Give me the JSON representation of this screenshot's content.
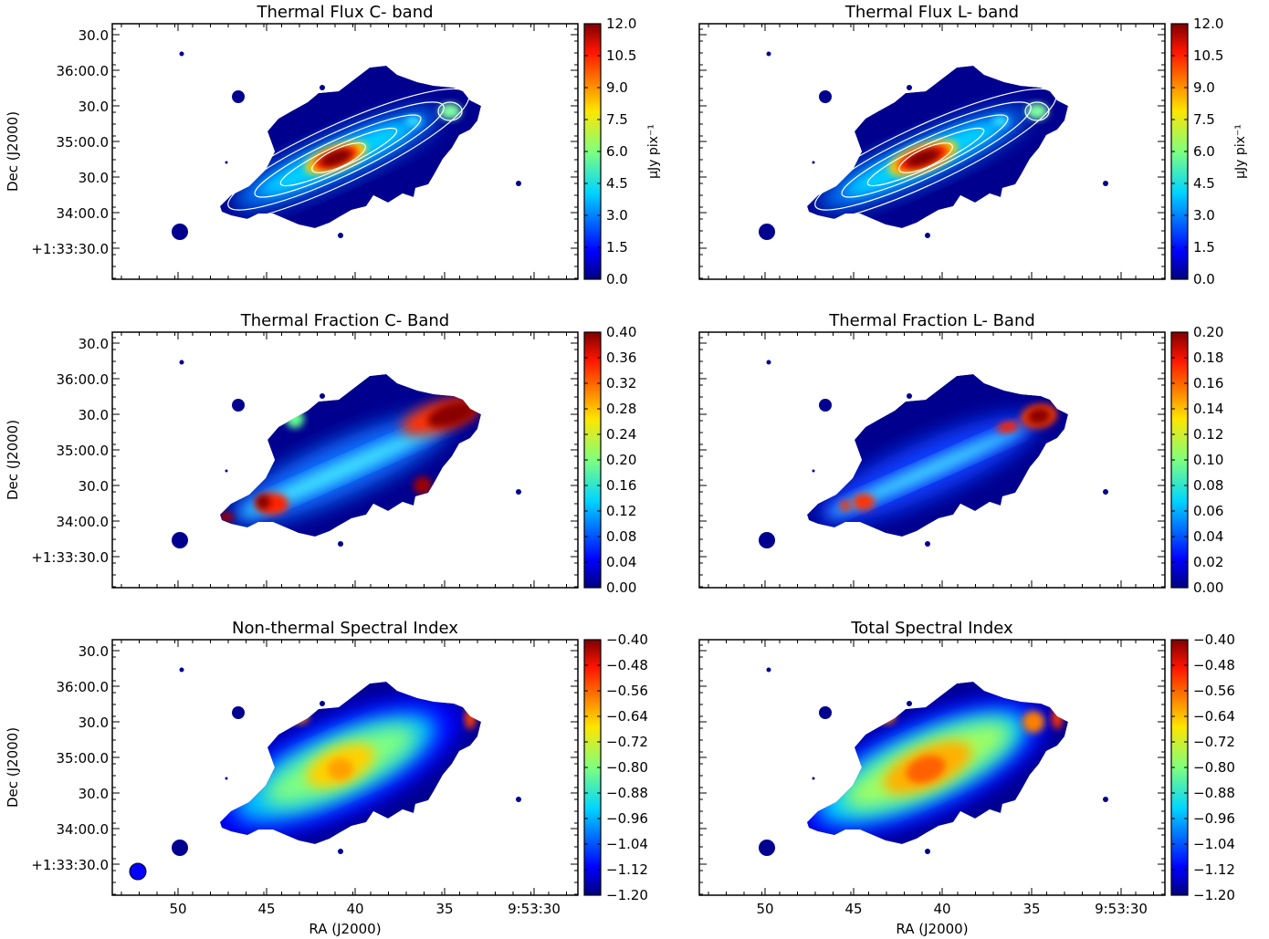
{
  "figure": {
    "colorbar_label_flux": "μJy pix⁻¹"
  },
  "chart_data": [
    {
      "type": "heatmap",
      "title": "Thermal Flux C- band",
      "xlabel": "",
      "ylabel": "Dec (J2000)",
      "x_ticklabels": [],
      "y_ticklabels": [
        "30.0",
        "36:00.0",
        "30.0",
        "35:00.0",
        "30.0",
        "34:00.0",
        "+1:33:30.0"
      ],
      "colorbar": {
        "ticks": [
          "0.0",
          "1.5",
          "3.0",
          "4.5",
          "6.0",
          "7.5",
          "9.0",
          "10.5",
          "12.0"
        ],
        "range": [
          0.0,
          12.0
        ],
        "label": "μJy pix⁻¹",
        "colormap": "jet"
      },
      "contours": true,
      "map_style": "flux-c"
    },
    {
      "type": "heatmap",
      "title": "Thermal Flux L- band",
      "xlabel": "",
      "ylabel": "",
      "x_ticklabels": [],
      "y_ticklabels": [],
      "colorbar": {
        "ticks": [
          "0.0",
          "1.5",
          "3.0",
          "4.5",
          "6.0",
          "7.5",
          "9.0",
          "10.5",
          "12.0"
        ],
        "range": [
          0.0,
          12.0
        ],
        "label": "μJy pix⁻¹",
        "colormap": "jet"
      },
      "contours": true,
      "map_style": "flux-l"
    },
    {
      "type": "heatmap",
      "title": "Thermal Fraction C- Band",
      "xlabel": "",
      "ylabel": "Dec (J2000)",
      "x_ticklabels": [],
      "y_ticklabels": [
        "30.0",
        "36:00.0",
        "30.0",
        "35:00.0",
        "30.0",
        "34:00.0",
        "+1:33:30.0"
      ],
      "colorbar": {
        "ticks": [
          "0.00",
          "0.04",
          "0.08",
          "0.12",
          "0.16",
          "0.20",
          "0.24",
          "0.28",
          "0.32",
          "0.36",
          "0.40"
        ],
        "range": [
          0.0,
          0.4
        ],
        "label": "",
        "colormap": "jet"
      },
      "contours": false,
      "map_style": "frac-c"
    },
    {
      "type": "heatmap",
      "title": "Thermal Fraction L- Band",
      "xlabel": "",
      "ylabel": "",
      "x_ticklabels": [],
      "y_ticklabels": [],
      "colorbar": {
        "ticks": [
          "0.00",
          "0.02",
          "0.04",
          "0.06",
          "0.08",
          "0.10",
          "0.12",
          "0.14",
          "0.16",
          "0.18",
          "0.20"
        ],
        "range": [
          0.0,
          0.2
        ],
        "label": "",
        "colormap": "jet"
      },
      "contours": false,
      "map_style": "frac-l"
    },
    {
      "type": "heatmap",
      "title": "Non-thermal Spectral Index",
      "xlabel": "RA (J2000)",
      "ylabel": "Dec (J2000)",
      "x_ticklabels": [
        "50",
        "45",
        "40",
        "35",
        "9:53:30"
      ],
      "y_ticklabels": [
        "30.0",
        "36:00.0",
        "30.0",
        "35:00.0",
        "30.0",
        "34:00.0",
        "+1:33:30.0"
      ],
      "colorbar": {
        "ticks": [
          "−1.20",
          "−1.12",
          "−1.04",
          "−0.96",
          "−0.88",
          "−0.80",
          "−0.72",
          "−0.64",
          "−0.56",
          "−0.48",
          "−0.40"
        ],
        "range": [
          -1.2,
          -0.4
        ],
        "label": "",
        "colormap": "jet"
      },
      "contours": false,
      "beam": true,
      "map_style": "index-nt"
    },
    {
      "type": "heatmap",
      "title": "Total Spectral Index",
      "xlabel": "RA (J2000)",
      "ylabel": "",
      "x_ticklabels": [
        "50",
        "45",
        "40",
        "35",
        "9:53:30"
      ],
      "y_ticklabels": [],
      "colorbar": {
        "ticks": [
          "−1.20",
          "−1.12",
          "−1.04",
          "−0.96",
          "−0.88",
          "−0.80",
          "−0.72",
          "−0.64",
          "−0.56",
          "−0.48",
          "−0.40"
        ],
        "range": [
          -1.2,
          -0.4
        ],
        "label": "",
        "colormap": "jet"
      },
      "contours": false,
      "map_style": "index-tot"
    }
  ]
}
